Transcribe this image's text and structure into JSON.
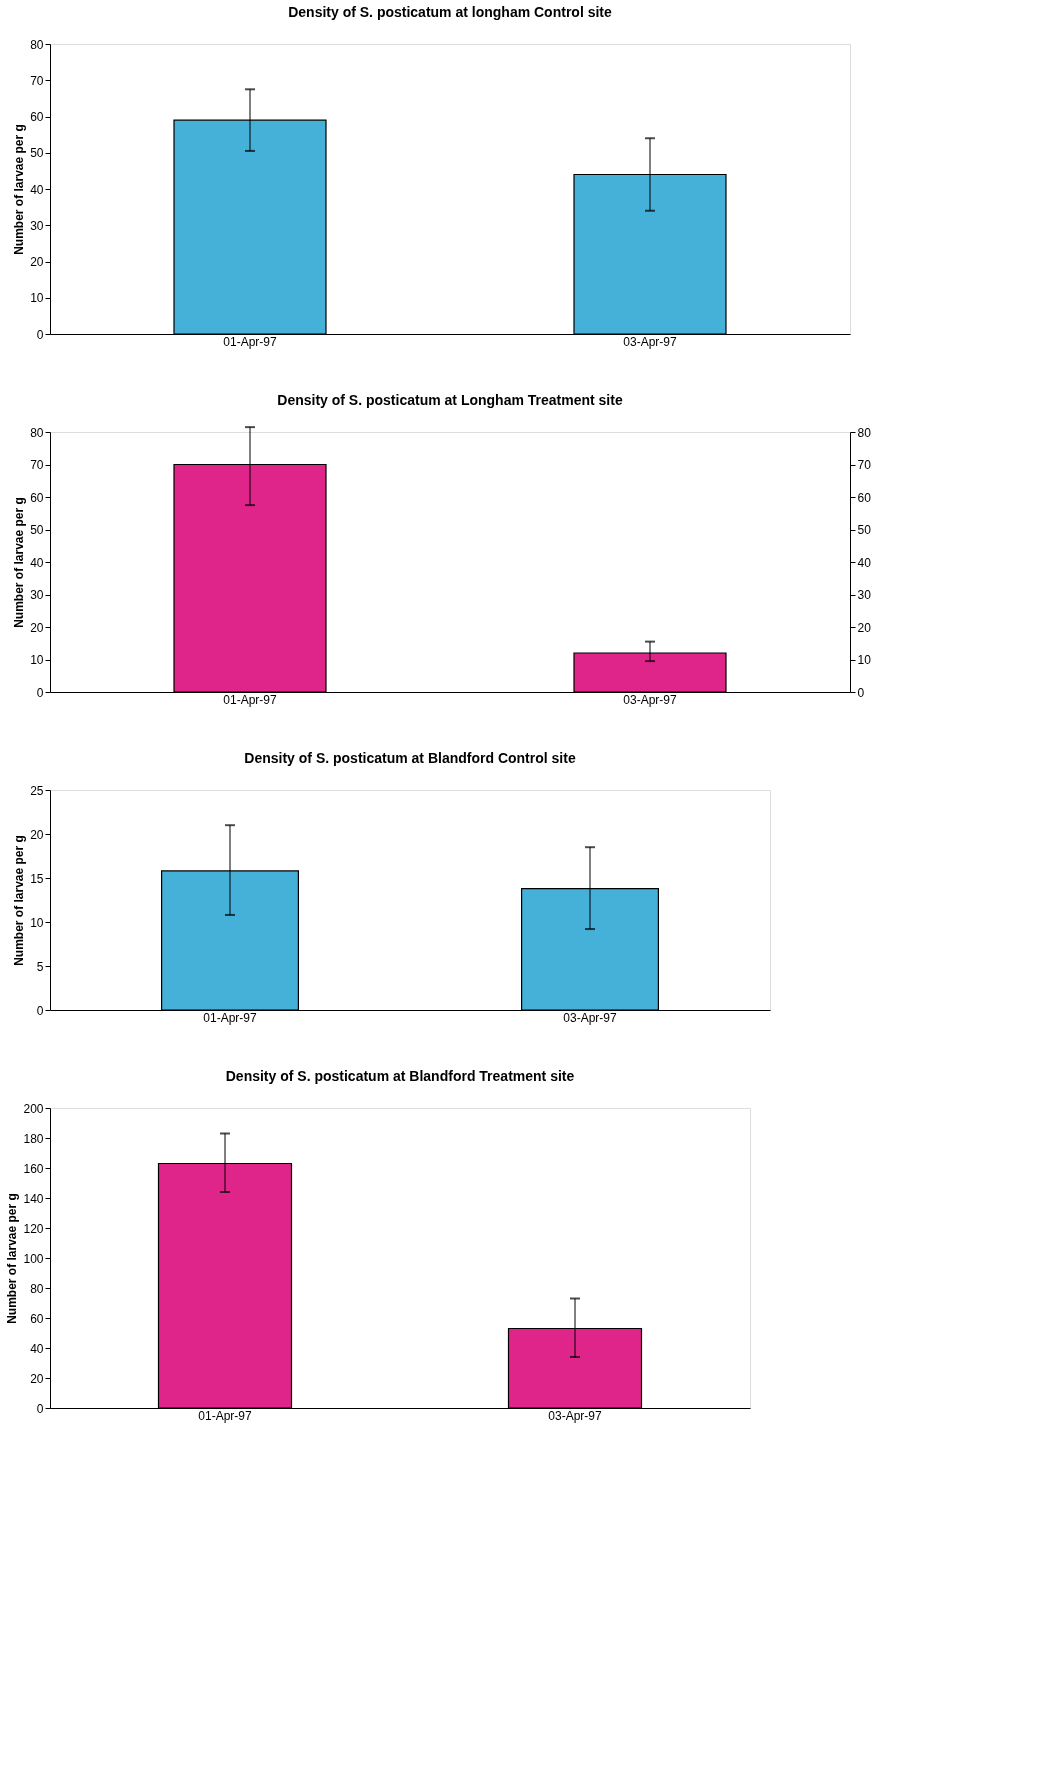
{
  "chart_data": [
    {
      "type": "bar",
      "title": "Density of S. posticatum at longham Control site",
      "ylabel": "Number of larvae per g",
      "categories": [
        "01-Apr-97",
        "03-Apr-97"
      ],
      "series": [
        {
          "color": "#45b0d8",
          "values": [
            59,
            44
          ],
          "errors": [
            [
              50.5,
              67.5
            ],
            [
              34,
              54
            ]
          ]
        }
      ],
      "ylim": [
        0,
        80
      ],
      "yticks": [
        0,
        10,
        20,
        30,
        40,
        50,
        60,
        70,
        80
      ],
      "grid": false,
      "legend": false
    },
    {
      "type": "bar",
      "title": "Density of S. posticatum at Longham Treatment site",
      "ylabel": "Number of larvae per g",
      "categories": [
        "01-Apr-97",
        "03-Apr-97"
      ],
      "series": [
        {
          "color": "#e0258a",
          "values": [
            70,
            12
          ],
          "errors": [
            [
              57.5,
              81.5
            ],
            [
              9.5,
              15.5
            ]
          ]
        }
      ],
      "ylim": [
        0,
        80
      ],
      "yticks": [
        0,
        10,
        20,
        30,
        40,
        50,
        60,
        70,
        80
      ],
      "y2lim": [
        0,
        80
      ],
      "y2ticks": [
        0,
        10,
        20,
        30,
        40,
        50,
        60,
        70,
        80
      ],
      "grid": false,
      "legend": false
    },
    {
      "type": "bar",
      "title": "Density of S. posticatum at Blandford Control site",
      "ylabel": "Number of larvae per g",
      "categories": [
        "01-Apr-97",
        "03-Apr-97"
      ],
      "series": [
        {
          "color": "#45b0d8",
          "values": [
            15.8,
            13.8
          ],
          "errors": [
            [
              10.8,
              21
            ],
            [
              9.2,
              18.5
            ]
          ]
        }
      ],
      "ylim": [
        0,
        25
      ],
      "yticks": [
        0,
        5,
        10,
        15,
        20,
        25
      ],
      "grid": false,
      "legend": false
    },
    {
      "type": "bar",
      "title": "Density of S. posticatum at Blandford Treatment site",
      "ylabel": "Number of larvae per g",
      "categories": [
        "01-Apr-97",
        "03-Apr-97"
      ],
      "series": [
        {
          "color": "#e0258a",
          "values": [
            163,
            53
          ],
          "errors": [
            [
              144,
              183
            ],
            [
              34,
              73
            ]
          ]
        }
      ],
      "ylim": [
        0,
        200
      ],
      "yticks": [
        0,
        20,
        40,
        60,
        80,
        100,
        120,
        140,
        160,
        180,
        200
      ],
      "grid": false,
      "legend": false
    }
  ]
}
